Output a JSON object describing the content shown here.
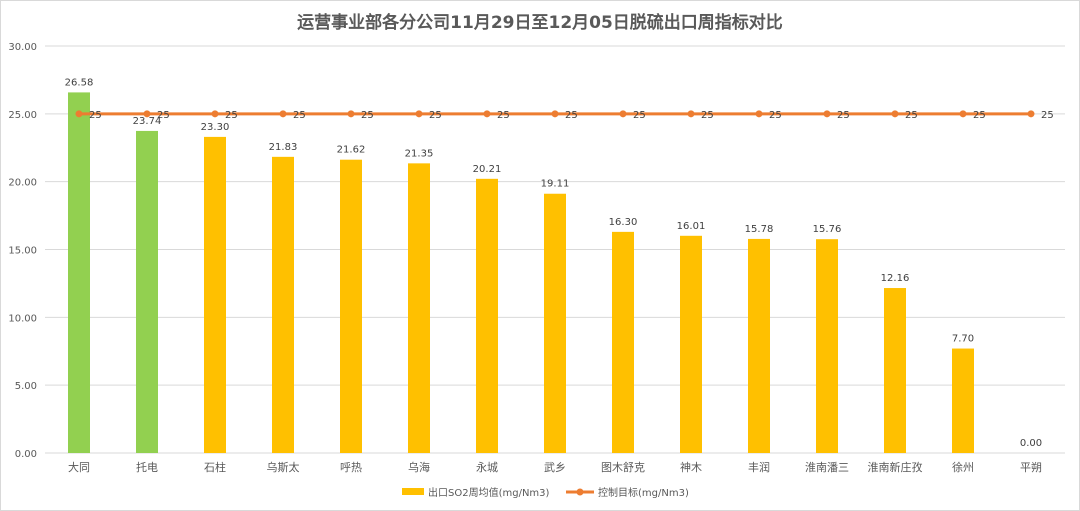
{
  "chart_data": {
    "type": "bar",
    "title": "运营事业部各分公司11月29日至12月05日脱硫出口周指标对比",
    "categories": [
      "大同",
      "托电",
      "石柱",
      "乌斯太",
      "呼热",
      "乌海",
      "永城",
      "武乡",
      "图木舒克",
      "神木",
      "丰润",
      "淮南潘三",
      "淮南新庄孜",
      "徐州",
      "平朔"
    ],
    "series": [
      {
        "name": "出口SO2周均值(mg/Nm3)",
        "kind": "bar",
        "color": "#ffc000",
        "values": [
          26.58,
          23.74,
          23.3,
          21.83,
          21.62,
          21.35,
          20.21,
          19.11,
          16.3,
          16.01,
          15.78,
          15.76,
          12.16,
          7.7,
          0.0
        ],
        "labels": [
          "26.58",
          "23.74",
          "23.30",
          "21.83",
          "21.62",
          "21.35",
          "20.21",
          "19.11",
          "16.30",
          "16.01",
          "15.78",
          "15.76",
          "12.16",
          "7.70",
          "0.00"
        ],
        "highlight_color": "#92d050",
        "highlight_indices": [
          0,
          1
        ]
      },
      {
        "name": "控制目标(mg/Nm3)",
        "kind": "line",
        "color": "#ed7d31",
        "values": [
          25,
          25,
          25,
          25,
          25,
          25,
          25,
          25,
          25,
          25,
          25,
          25,
          25,
          25,
          25
        ],
        "labels": [
          "25",
          "25",
          "25",
          "25",
          "25",
          "25",
          "25",
          "25",
          "25",
          "25",
          "25",
          "25",
          "25",
          "25",
          "25"
        ]
      }
    ],
    "ylim": [
      0,
      30
    ],
    "yticks": [
      "0.00",
      "5.00",
      "10.00",
      "15.00",
      "20.00",
      "25.00",
      "30.00"
    ],
    "grid": true,
    "legend": "bottom",
    "xlabel": "",
    "ylabel": ""
  }
}
